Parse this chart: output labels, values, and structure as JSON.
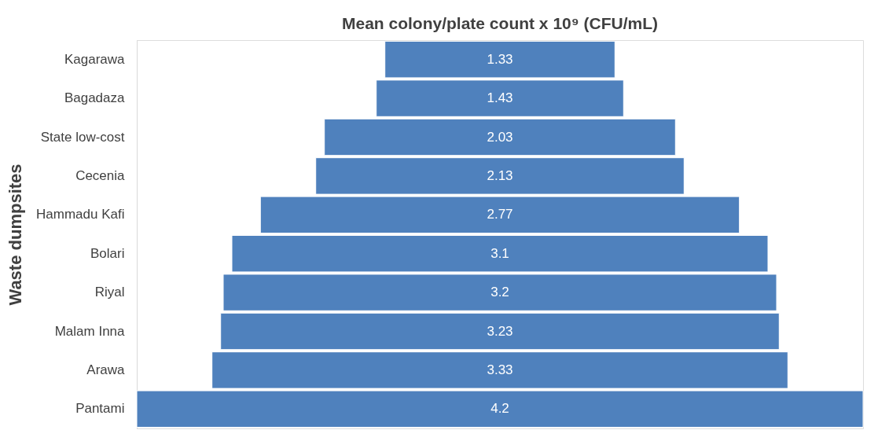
{
  "chart_data": {
    "type": "other",
    "title": "Mean colony/plate count x 10⁹ (CFU/mL)",
    "ylabel": "Waste dumpsites",
    "categories": [
      "Kagarawa",
      "Bagadaza",
      "State low-cost",
      "Cecenia",
      "Hammadu Kafi",
      "Bolari",
      "Riyal",
      "Malam Inna",
      "Arawa",
      "Pantami"
    ],
    "values": [
      1.33,
      1.43,
      2.03,
      2.13,
      2.77,
      3.1,
      3.2,
      3.23,
      3.33,
      4.2
    ],
    "color": "#4f81bd",
    "data_labels": true
  }
}
